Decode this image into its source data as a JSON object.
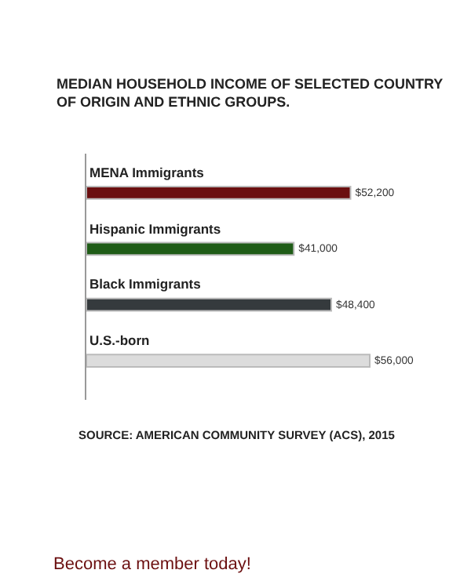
{
  "chart_data": {
    "type": "bar",
    "orientation": "horizontal",
    "title": "MEDIAN HOUSEHOLD INCOME OF SELECTED COUNTRY OF ORIGIN AND ETHNIC GROUPS.",
    "categories": [
      "MENA Immigrants",
      "Hispanic Immigrants",
      "Black Immigrants",
      "U.S.-born"
    ],
    "values": [
      52200,
      41000,
      48400,
      56000
    ],
    "colors": [
      "#6b0f10",
      "#1f5c17",
      "#353a3d",
      "#dcdcdc"
    ],
    "value_labels": [
      "$52,200",
      "$41,000",
      "$48,400",
      "$56,000"
    ],
    "annotations": [
      "SOURCE: AMERICAN COMMUNITY SURVEY (ACS), 2015",
      "Become a member today!"
    ],
    "grid": false
  }
}
